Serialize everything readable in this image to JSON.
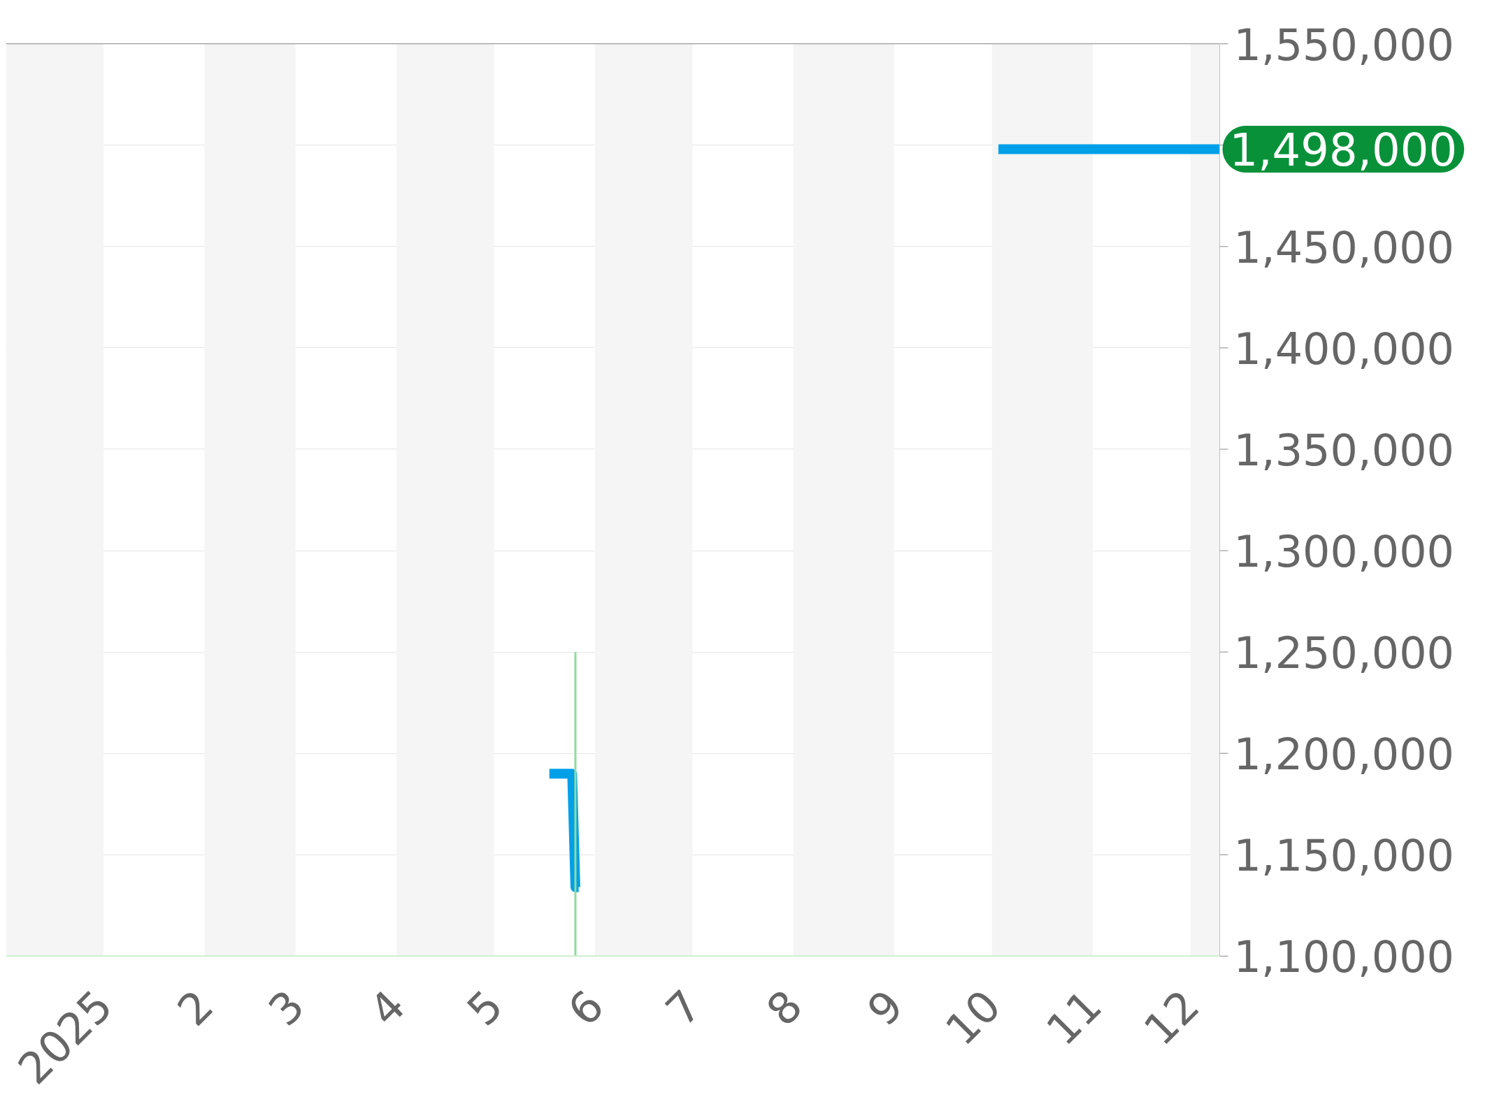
{
  "chart_data": {
    "type": "line",
    "xlim": [
      "2024-12-02",
      "2025-12-10"
    ],
    "ylim": [
      1100000,
      1550000
    ],
    "xticks": [
      {
        "value": "2025-01-01",
        "label": "2025"
      },
      {
        "value": "2025-02-01",
        "label": "2"
      },
      {
        "value": "2025-03-01",
        "label": "3"
      },
      {
        "value": "2025-04-01",
        "label": "4"
      },
      {
        "value": "2025-05-01",
        "label": "5"
      },
      {
        "value": "2025-06-01",
        "label": "6"
      },
      {
        "value": "2025-07-01",
        "label": "7"
      },
      {
        "value": "2025-08-01",
        "label": "8"
      },
      {
        "value": "2025-09-01",
        "label": "9"
      },
      {
        "value": "2025-10-01",
        "label": "10"
      },
      {
        "value": "2025-11-01",
        "label": "11"
      },
      {
        "value": "2025-12-01",
        "label": "12"
      }
    ],
    "yticks": [
      {
        "value": 1100000,
        "label": "1,100,000"
      },
      {
        "value": 1150000,
        "label": "1,150,000"
      },
      {
        "value": 1200000,
        "label": "1,200,000"
      },
      {
        "value": 1250000,
        "label": "1,250,000"
      },
      {
        "value": 1300000,
        "label": "1,300,000"
      },
      {
        "value": 1350000,
        "label": "1,350,000"
      },
      {
        "value": 1400000,
        "label": "1,400,000"
      },
      {
        "value": 1450000,
        "label": "1,450,000"
      },
      {
        "value": 1500000,
        "label": null
      },
      {
        "value": 1550000,
        "label": "1,550,000"
      }
    ],
    "grid": "y",
    "marker": "none",
    "line_style": "solid",
    "bands": [
      {
        "axis": "x",
        "from": "2024-12-02",
        "to": "2025-01-01",
        "color": "#f5f5f5"
      },
      {
        "axis": "x",
        "from": "2025-02-01",
        "to": "2025-03-01",
        "color": "#f5f5f5"
      },
      {
        "axis": "x",
        "from": "2025-04-01",
        "to": "2025-05-01",
        "color": "#f5f5f5"
      },
      {
        "axis": "x",
        "from": "2025-06-01",
        "to": "2025-07-01",
        "color": "#f5f5f5"
      },
      {
        "axis": "x",
        "from": "2025-08-01",
        "to": "2025-09-01",
        "color": "#f5f5f5"
      },
      {
        "axis": "x",
        "from": "2025-10-01",
        "to": "2025-11-01",
        "color": "#f5f5f5"
      },
      {
        "axis": "x",
        "from": "2025-12-01",
        "to": "2025-12-10",
        "color": "#f5f5f5"
      }
    ],
    "series": [
      {
        "color": "#00a0e9",
        "x": [
          "2025-05-18",
          "2025-05-25",
          "2025-05-26",
          "2025-05-27",
          "2025-07-01",
          "2025-10-03",
          "2025-12-10"
        ],
        "values": [
          1190000,
          1190000,
          1134000,
          1134000,
          null,
          1498000,
          1498000
        ]
      },
      {
        "color": "#8fdca0",
        "type": "line",
        "x": [
          "2025-05-26",
          "2025-05-26"
        ],
        "values": [
          1100000,
          1250000
        ]
      }
    ],
    "annotations": [
      "1,498,000"
    ]
  }
}
